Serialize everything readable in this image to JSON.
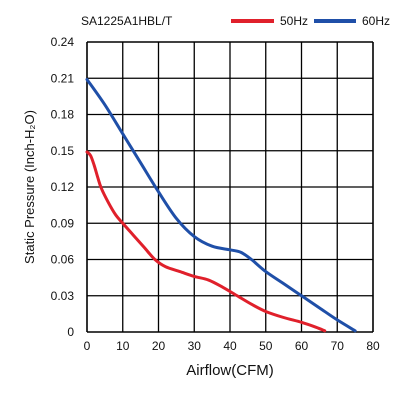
{
  "chart_data": {
    "type": "line",
    "title": "SA1225A1HBL/T",
    "xlabel": "Airflow(CFM)",
    "ylabel": "Static Pressure (Inch-H₂O)",
    "xlim": [
      0,
      80
    ],
    "ylim": [
      0,
      0.24
    ],
    "x_ticks": [
      "0",
      "10",
      "20",
      "30",
      "40",
      "50",
      "60",
      "70",
      "80"
    ],
    "y_ticks": [
      "0",
      "0.03",
      "0.06",
      "0.09",
      "0.12",
      "0.15",
      "0.18",
      "0.21",
      "0.24"
    ],
    "grid": true,
    "legend_position": "top-right",
    "series": [
      {
        "name": "50Hz",
        "color": "#e0202b",
        "points": [
          [
            0,
            0.149
          ],
          [
            1,
            0.146
          ],
          [
            2,
            0.138
          ],
          [
            3,
            0.128
          ],
          [
            4,
            0.119
          ],
          [
            6,
            0.107
          ],
          [
            8,
            0.097
          ],
          [
            10,
            0.09
          ],
          [
            13,
            0.08
          ],
          [
            16,
            0.07
          ],
          [
            19,
            0.06
          ],
          [
            22,
            0.054
          ],
          [
            26,
            0.05
          ],
          [
            30,
            0.046
          ],
          [
            34,
            0.043
          ],
          [
            38,
            0.037
          ],
          [
            42,
            0.03
          ],
          [
            46,
            0.023
          ],
          [
            50,
            0.017
          ],
          [
            55,
            0.012
          ],
          [
            60,
            0.008
          ],
          [
            64,
            0.004
          ],
          [
            66.5,
            0.001
          ]
        ]
      },
      {
        "name": "60Hz",
        "color": "#1f4fa8",
        "points": [
          [
            0,
            0.209
          ],
          [
            5,
            0.188
          ],
          [
            10,
            0.164
          ],
          [
            15,
            0.14
          ],
          [
            20,
            0.116
          ],
          [
            25,
            0.094
          ],
          [
            30,
            0.079
          ],
          [
            35,
            0.071
          ],
          [
            40,
            0.068
          ],
          [
            43,
            0.066
          ],
          [
            46,
            0.06
          ],
          [
            50,
            0.05
          ],
          [
            55,
            0.04
          ],
          [
            60,
            0.03
          ],
          [
            65,
            0.02
          ],
          [
            70,
            0.01
          ],
          [
            75,
            0.001
          ]
        ]
      }
    ]
  }
}
